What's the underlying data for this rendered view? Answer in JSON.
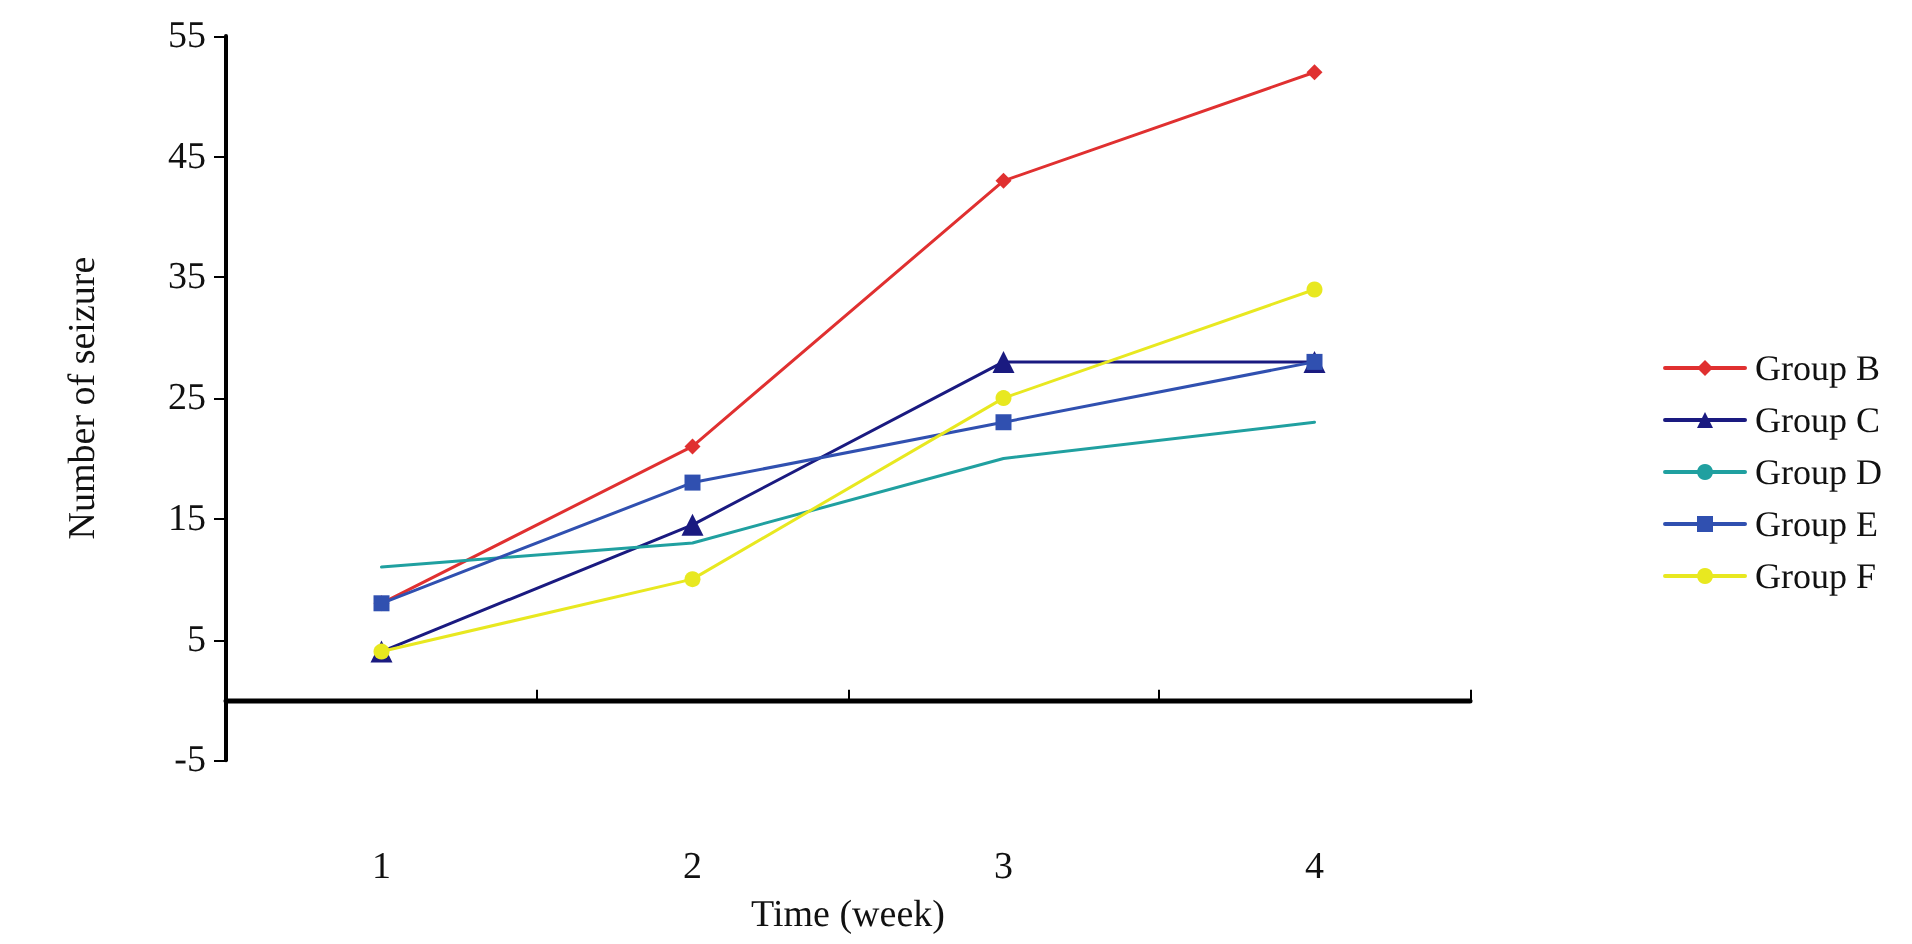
{
  "chart_data": {
    "type": "line",
    "xlabel": "Time (week)",
    "ylabel": "Number of seizure",
    "categories": [
      "1",
      "2",
      "3",
      "4"
    ],
    "ylim": [
      -5,
      55
    ],
    "yticks": [
      -5,
      5,
      15,
      25,
      35,
      45,
      55
    ],
    "grid": false,
    "legend": "right",
    "series": [
      {
        "name": "Group B",
        "color": "#e03030",
        "marker": "diamond",
        "values": [
          8,
          21,
          43,
          52
        ]
      },
      {
        "name": "Group C",
        "color": "#1a1a80",
        "marker": "triangle",
        "values": [
          4,
          14.5,
          28,
          28
        ]
      },
      {
        "name": "Group D",
        "color": "#20a0a0",
        "marker": "none",
        "values": [
          11,
          13,
          20,
          23
        ]
      },
      {
        "name": "Group E",
        "color": "#3050b0",
        "marker": "square",
        "values": [
          8,
          18,
          23,
          28
        ]
      },
      {
        "name": "Group F",
        "color": "#e8e820",
        "marker": "circle",
        "values": [
          4,
          10,
          25,
          34
        ]
      }
    ]
  }
}
